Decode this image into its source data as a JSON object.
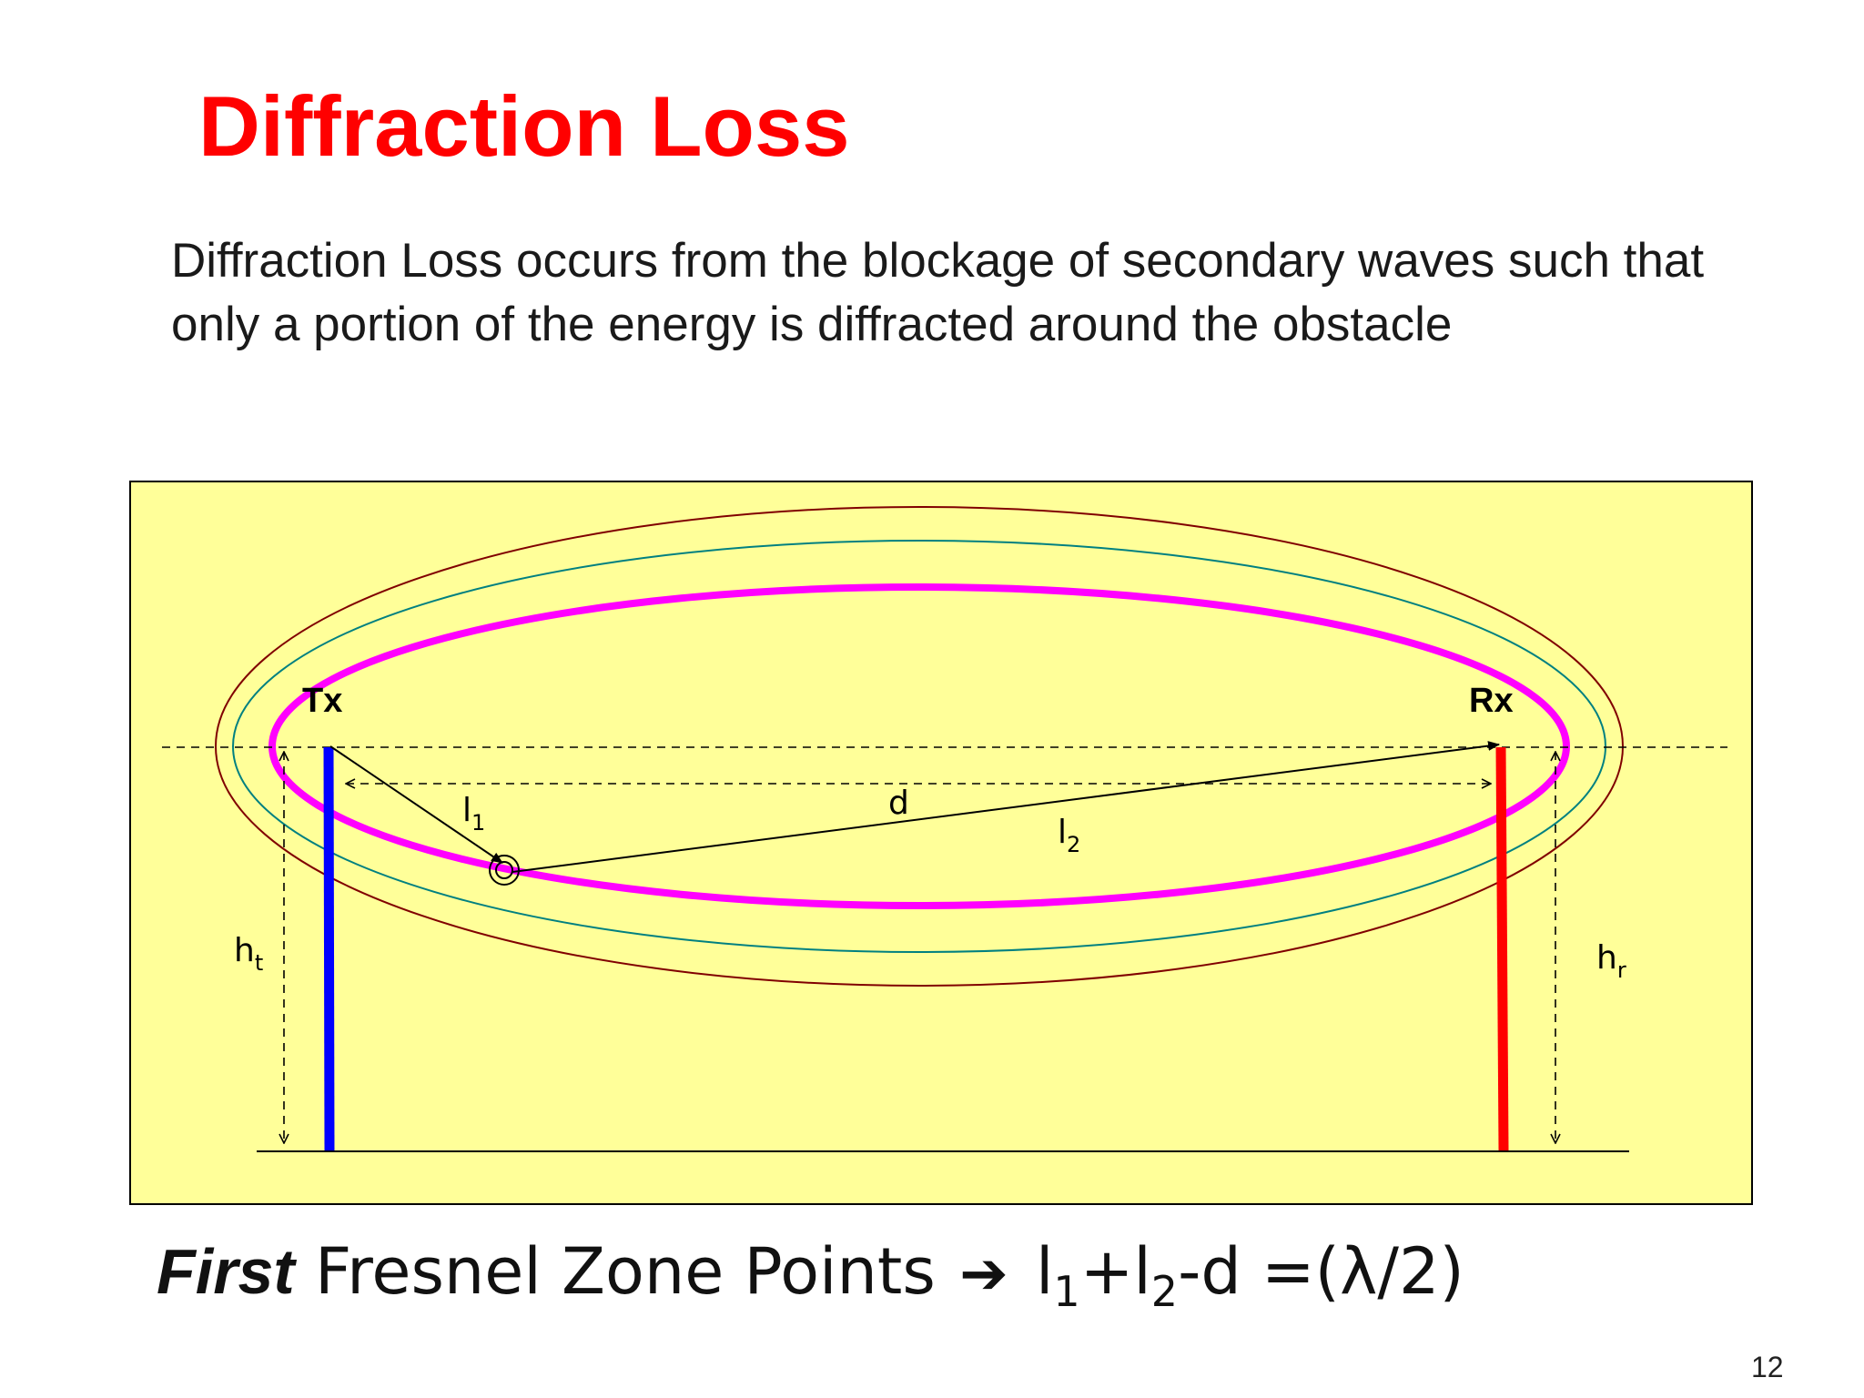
{
  "slide": {
    "title": "Diffraction Loss",
    "body": "Diffraction Loss occurs from the blockage of secondary waves such that only a portion of the energy is diffracted around the obstacle",
    "page_number": "12"
  },
  "diagram": {
    "background_color": "#ffff99",
    "tx_label": "Tx",
    "rx_label": "Rx",
    "distance_label": "d",
    "path1_label": "l",
    "path1_sub": "1",
    "path2_label": "l",
    "path2_sub": "2",
    "tx_height_label": "h",
    "tx_height_sub": "t",
    "rx_height_label": "h",
    "rx_height_sub": "r",
    "colors": {
      "tx_antenna": "#0000ff",
      "rx_antenna": "#ff0000",
      "first_fresnel_zone": "#ff00ff",
      "second_zone": "#008080",
      "third_zone": "#800000"
    }
  },
  "formula": {
    "emphasis": "First",
    "text": "Fresnel Zone Points",
    "arrow": "➔",
    "l1": "l",
    "l1_sub": "1",
    "plus": "+",
    "l2": "l",
    "l2_sub": "2",
    "rest": "-d =(λ/2)"
  }
}
